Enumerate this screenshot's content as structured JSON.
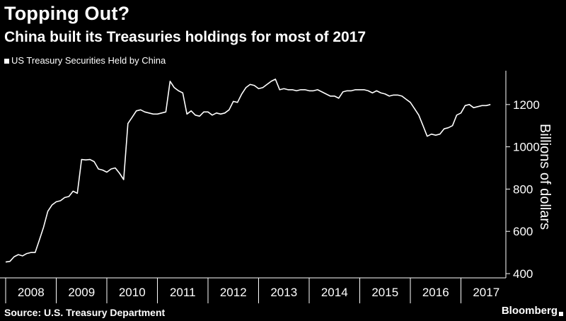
{
  "header": {
    "title": "Topping Out?",
    "subtitle": "China built its Treasuries holdings for most of 2017"
  },
  "footer": {
    "source": "Source: U.S. Treasury Department",
    "brand": "Bloomberg"
  },
  "colors": {
    "background": "#000000",
    "series": "#ffffff"
  },
  "chart_data": {
    "type": "line",
    "title": "Topping Out?",
    "subtitle": "China built its Treasuries holdings for most of 2017",
    "ylabel": "Billions of dollars",
    "xlabel": "",
    "ylim": [
      380,
      1360
    ],
    "yticks": [
      400,
      600,
      800,
      1000,
      1200
    ],
    "yaxis_side": "right",
    "grid": false,
    "legend_position": "top-left",
    "x_categories": [
      "2008",
      "2009",
      "2010",
      "2011",
      "2012",
      "2013",
      "2014",
      "2015",
      "2016",
      "2017"
    ],
    "series": [
      {
        "name": "US Treasury Securities Held by China",
        "x": [
          "2008-01",
          "2008-02",
          "2008-03",
          "2008-04",
          "2008-05",
          "2008-06",
          "2008-07",
          "2008-08",
          "2008-09",
          "2008-10",
          "2008-11",
          "2008-12",
          "2009-01",
          "2009-02",
          "2009-03",
          "2009-04",
          "2009-05",
          "2009-06",
          "2009-07",
          "2009-08",
          "2009-09",
          "2009-10",
          "2009-11",
          "2009-12",
          "2010-01",
          "2010-02",
          "2010-03",
          "2010-04",
          "2010-05",
          "2010-06",
          "2010-07",
          "2010-08",
          "2010-09",
          "2010-10",
          "2010-11",
          "2010-12",
          "2011-01",
          "2011-02",
          "2011-03",
          "2011-04",
          "2011-05",
          "2011-06",
          "2011-07",
          "2011-08",
          "2011-09",
          "2011-10",
          "2011-11",
          "2011-12",
          "2012-01",
          "2012-02",
          "2012-03",
          "2012-04",
          "2012-05",
          "2012-06",
          "2012-07",
          "2012-08",
          "2012-09",
          "2012-10",
          "2012-11",
          "2012-12",
          "2013-01",
          "2013-02",
          "2013-03",
          "2013-04",
          "2013-05",
          "2013-06",
          "2013-07",
          "2013-08",
          "2013-09",
          "2013-10",
          "2013-11",
          "2013-12",
          "2014-01",
          "2014-02",
          "2014-03",
          "2014-04",
          "2014-05",
          "2014-06",
          "2014-07",
          "2014-08",
          "2014-09",
          "2014-10",
          "2014-11",
          "2014-12",
          "2015-01",
          "2015-02",
          "2015-03",
          "2015-04",
          "2015-05",
          "2015-06",
          "2015-07",
          "2015-08",
          "2015-09",
          "2015-10",
          "2015-11",
          "2015-12",
          "2016-01",
          "2016-02",
          "2016-03",
          "2016-04",
          "2016-05",
          "2016-06",
          "2016-07",
          "2016-08",
          "2016-09",
          "2016-10",
          "2016-11",
          "2016-12",
          "2017-01",
          "2017-02",
          "2017-03",
          "2017-04",
          "2017-05",
          "2017-06",
          "2017-07",
          "2017-08"
        ],
        "values": [
          455,
          458,
          480,
          490,
          484,
          495,
          500,
          500,
          560,
          620,
          695,
          725,
          740,
          745,
          760,
          765,
          790,
          780,
          940,
          938,
          940,
          930,
          895,
          890,
          880,
          895,
          900,
          875,
          845,
          1110,
          1140,
          1170,
          1175,
          1165,
          1160,
          1155,
          1155,
          1160,
          1165,
          1310,
          1280,
          1265,
          1255,
          1155,
          1170,
          1150,
          1145,
          1165,
          1165,
          1150,
          1160,
          1155,
          1160,
          1175,
          1215,
          1210,
          1250,
          1280,
          1295,
          1290,
          1275,
          1280,
          1295,
          1310,
          1320,
          1270,
          1275,
          1270,
          1270,
          1265,
          1270,
          1270,
          1265,
          1265,
          1270,
          1260,
          1250,
          1240,
          1240,
          1230,
          1260,
          1265,
          1265,
          1270,
          1270,
          1270,
          1265,
          1255,
          1265,
          1255,
          1250,
          1240,
          1245,
          1245,
          1240,
          1225,
          1210,
          1180,
          1150,
          1100,
          1050,
          1060,
          1055,
          1060,
          1085,
          1090,
          1100,
          1150,
          1160,
          1195,
          1200,
          1185,
          1190,
          1195,
          1195,
          1200
        ]
      }
    ]
  }
}
